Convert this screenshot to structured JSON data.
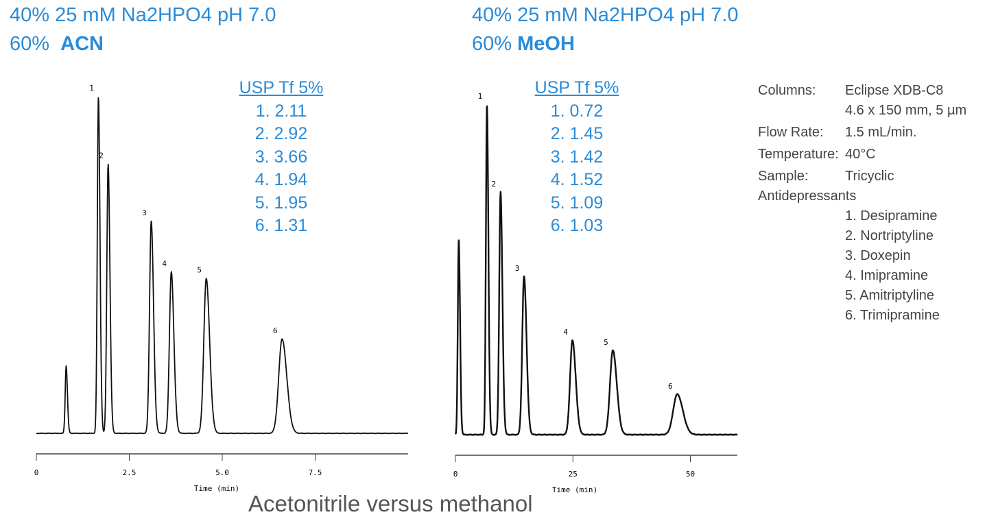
{
  "left_title": {
    "line1": "40% 25 mM Na2HPO4 pH 7.0",
    "line2_prefix": "60%",
    "line2_bold": "ACN"
  },
  "right_title": {
    "line1": "40% 25 mM Na2HPO4 pH 7.0",
    "line2_prefix": "60%",
    "line2_bold": "MeOH"
  },
  "left_usp": {
    "header": "USP Tf 5%",
    "values": [
      "1. 2.11",
      "2. 2.92",
      "3. 3.66",
      "4. 1.94",
      "5. 1.95",
      "6. 1.31"
    ]
  },
  "right_usp": {
    "header": "USP Tf 5%",
    "values": [
      "1. 0.72",
      "2. 1.45",
      "3. 1.42",
      "4. 1.52",
      "5. 1.09",
      "6. 1.03"
    ]
  },
  "conditions": {
    "columns_label": "Columns:",
    "columns_value": "Eclipse XDB-C8",
    "columns_value2": "4.6 x 150 mm, 5 µm",
    "flow_label": "Flow Rate:",
    "flow_value": "1.5 mL/min.",
    "temp_label": "Temperature:",
    "temp_value": "40°C",
    "sample_label": "Sample:",
    "sample_value": "Tricyclic",
    "sample_value2": "Antidepressants",
    "compounds": [
      "1. Desipramine",
      "2. Nortriptyline",
      "3. Doxepin",
      "4. Imipramine",
      "5. Amitriptyline",
      "6. Trimipramine"
    ]
  },
  "caption": "Acetonitrile versus methanol",
  "colors": {
    "accent": "#2b8bd6",
    "trace": "#111111"
  },
  "chart_data": [
    {
      "type": "line",
      "title": "60% ACN",
      "xlabel": "Time (min)",
      "xlim": [
        0,
        10
      ],
      "xticks": [
        "0",
        "2.5",
        "5.0",
        "7.5"
      ],
      "xtick_values": [
        0,
        2.5,
        5.0,
        7.5
      ],
      "ylabel": "",
      "peaks": [
        {
          "label": "",
          "time": 0.8,
          "height": 20,
          "width": 0.025
        },
        {
          "label": "1",
          "time": 1.67,
          "height": 100,
          "width": 0.03
        },
        {
          "label": "2",
          "time": 1.93,
          "height": 80,
          "width": 0.035
        },
        {
          "label": "3",
          "time": 3.09,
          "height": 63,
          "width": 0.045
        },
        {
          "label": "4",
          "time": 3.63,
          "height": 48,
          "width": 0.05
        },
        {
          "label": "5",
          "time": 4.57,
          "height": 46,
          "width": 0.065
        },
        {
          "label": "6",
          "time": 6.61,
          "height": 28,
          "width": 0.09
        }
      ]
    },
    {
      "type": "line",
      "title": "60% MeOH",
      "xlabel": "Time (min)",
      "xlim": [
        0,
        60
      ],
      "xticks": [
        "0",
        "25",
        "50"
      ],
      "xtick_values": [
        0,
        25,
        50
      ],
      "ylabel": "",
      "peaks": [
        {
          "label": "",
          "time": 0.7,
          "height": 58,
          "width": 0.2
        },
        {
          "label": "1",
          "time": 6.7,
          "height": 98,
          "width": 0.22
        },
        {
          "label": "2",
          "time": 9.6,
          "height": 72,
          "width": 0.28
        },
        {
          "label": "3",
          "time": 14.6,
          "height": 47,
          "width": 0.38
        },
        {
          "label": "4",
          "time": 24.9,
          "height": 28,
          "width": 0.5
        },
        {
          "label": "5",
          "time": 33.5,
          "height": 25,
          "width": 0.6
        },
        {
          "label": "6",
          "time": 47.2,
          "height": 12,
          "width": 0.85
        }
      ]
    }
  ]
}
